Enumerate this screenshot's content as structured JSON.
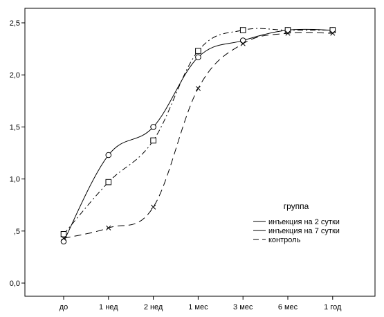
{
  "chart_data": {
    "type": "line",
    "categories": [
      "до",
      "1 нед",
      "2 нед",
      "1 мес",
      "3 мес",
      "6 мес",
      "1 год"
    ],
    "y_ticks": [
      "0,0",
      ",5",
      "1,0",
      "1,5",
      "2,0",
      "2,5"
    ],
    "y_tick_values": [
      0,
      0.5,
      1.0,
      1.5,
      2.0,
      2.5
    ],
    "ylim": [
      0,
      2.62
    ],
    "grid": false,
    "legend": {
      "title": "группа",
      "placement": "right"
    },
    "series": [
      {
        "name": "инъекция на 2 сутки",
        "marker": "circle",
        "line_style": "solid",
        "values": [
          0.4,
          1.23,
          1.5,
          2.17,
          2.33,
          2.43,
          2.43
        ]
      },
      {
        "name": "инъекция на 7 сутки",
        "marker": "square",
        "line_style": "dash-dot",
        "values": [
          0.47,
          0.97,
          1.37,
          2.23,
          2.43,
          2.43,
          2.43
        ]
      },
      {
        "name": "контроль",
        "marker": "cross",
        "line_style": "dashed",
        "values": [
          0.43,
          0.53,
          0.73,
          1.87,
          2.3,
          2.4,
          2.4
        ]
      }
    ]
  }
}
